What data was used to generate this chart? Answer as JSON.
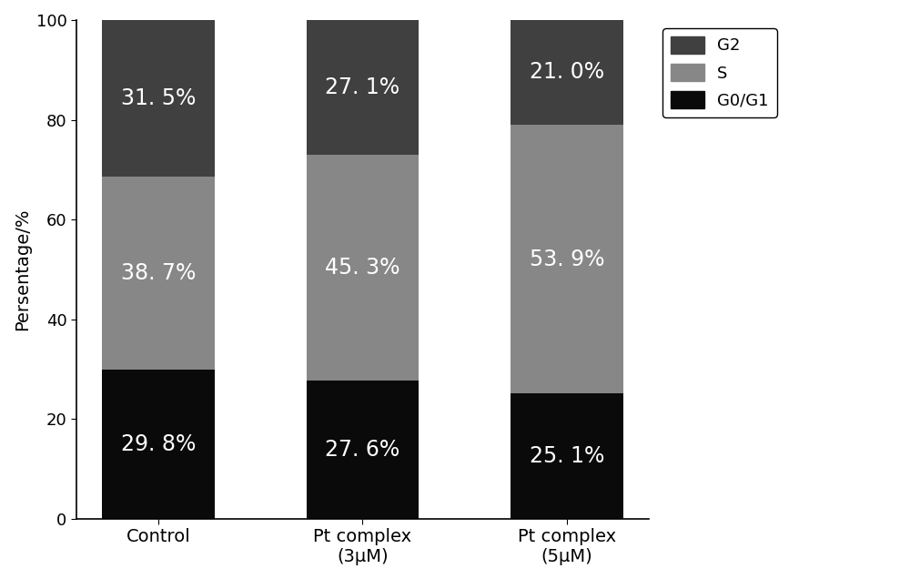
{
  "categories": [
    "Control",
    "Pt complex\n(3μM)",
    "Pt complex\n(5μM)"
  ],
  "G0G1": [
    29.8,
    27.6,
    25.1
  ],
  "S": [
    38.7,
    45.3,
    53.9
  ],
  "G2": [
    31.5,
    27.1,
    21.0
  ],
  "colors": {
    "G0G1": "#0a0a0a",
    "S": "#878787",
    "G2": "#404040"
  },
  "labels": {
    "G0G1": [
      "29. 8%",
      "27. 6%",
      "25. 1%"
    ],
    "S": [
      "38. 7%",
      "45. 3%",
      "53. 9%"
    ],
    "G2": [
      "31. 5%",
      "27. 1%",
      "21. 0%"
    ]
  },
  "ylabel": "Persentage/%",
  "ylim": [
    0,
    100
  ],
  "yticks": [
    0,
    20,
    40,
    60,
    80,
    100
  ],
  "bar_width": 0.55,
  "legend_labels": [
    "G2",
    "S",
    "G0/G1"
  ],
  "legend_colors": [
    "#404040",
    "#878787",
    "#0a0a0a"
  ],
  "text_color": "#ffffff",
  "text_fontsize": 17,
  "background_color": "#ffffff",
  "figsize": [
    10.0,
    6.36
  ]
}
